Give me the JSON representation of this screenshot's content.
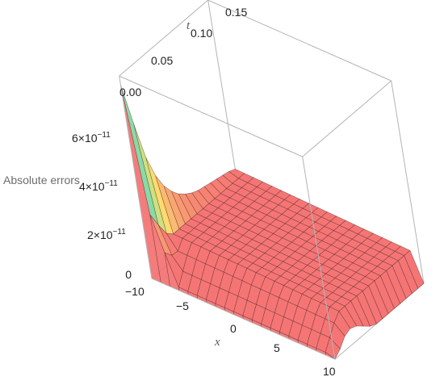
{
  "chart_data": {
    "type": "surface",
    "zlabel": "Absolute errors",
    "xlabel": "x",
    "tlabel": "t",
    "x_range": [
      -10,
      10
    ],
    "t_range": [
      0,
      0.15
    ],
    "z_range": [
      0,
      7e-11
    ],
    "x_ticks": [
      "−10",
      "−5",
      "0",
      "5",
      "10"
    ],
    "t_ticks": [
      "0.00",
      "0.05",
      "0.10",
      "0.15"
    ],
    "z_ticks": [
      {
        "mantissa": "0",
        "exponent": ""
      },
      {
        "mantissa": "2×10",
        "exponent": "−11"
      },
      {
        "mantissa": "4×10",
        "exponent": "−11"
      },
      {
        "mantissa": "6×10",
        "exponent": "−11"
      }
    ],
    "x_grid": [
      -10,
      -9,
      -8,
      -7,
      -6,
      -5,
      -4,
      -3,
      -2,
      -1,
      0,
      1,
      2,
      3,
      4,
      5,
      6,
      7,
      8,
      9,
      10
    ],
    "t_grid": [
      0,
      0.01,
      0.02,
      0.03,
      0.04,
      0.05,
      0.06,
      0.07,
      0.08,
      0.09,
      0.1,
      0.11,
      0.12,
      0.13,
      0.14,
      0.15
    ],
    "boundary_error_x_neg10": [
      7.5e-11,
      5.8e-11,
      4.3e-11,
      3.4e-11,
      2.8e-11,
      2.4e-11,
      2.1e-11,
      1.9e-11,
      1.75e-11,
      1.65e-11,
      1.6e-11,
      1.55e-11,
      1.5e-11,
      1.45e-11,
      1.4e-11,
      1.3e-11
    ],
    "boundary_error_x_10": [
      0.0,
      2e-12,
      5e-12,
      6e-12,
      5e-12,
      3e-12,
      1e-12,
      0.0,
      0.0,
      0.0,
      0.0,
      0.0,
      0.0,
      0.0,
      0.0,
      0.0
    ],
    "plateau_level": 1.3e-11,
    "colors": {
      "surface": "#f46e6e",
      "mesh": "#4a2020",
      "box": "#b4b4b4",
      "peak_gradient": [
        "#f46e6e",
        "#ffe066",
        "#8ee08e",
        "#5bbde8",
        "#5a4fa8"
      ]
    }
  }
}
